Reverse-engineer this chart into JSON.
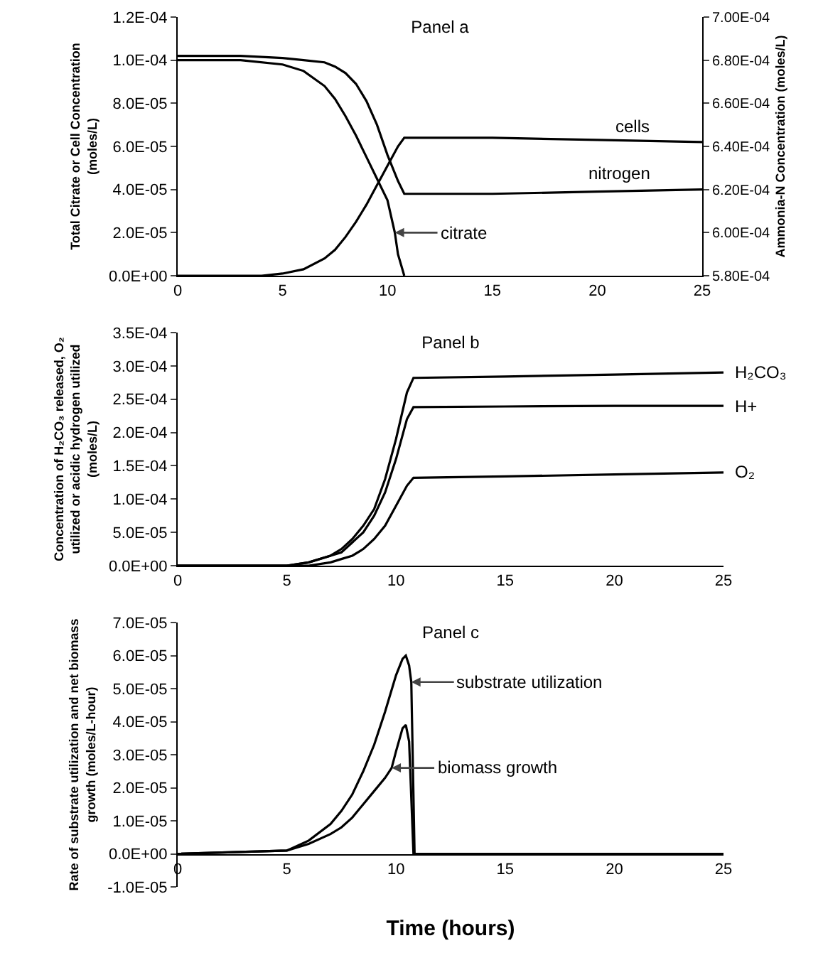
{
  "chart_data": [
    {
      "type": "line",
      "title": "Panel a",
      "ylabel": "Total Citrate or Cell Concentration\n(moles/L)",
      "y2label": "Ammonia-N Concentration (moles/L)",
      "xlim": [
        0,
        25
      ],
      "xticks": [
        0,
        5,
        10,
        15,
        20,
        25
      ],
      "ylim": [
        0,
        0.00012
      ],
      "yticks": [
        {
          "value": 0,
          "label": "0.0E+00"
        },
        {
          "value": 2e-05,
          "label": "2.0E-05"
        },
        {
          "value": 4e-05,
          "label": "4.0E-05"
        },
        {
          "value": 6e-05,
          "label": "6.0E-05"
        },
        {
          "value": 8e-05,
          "label": "8.0E-05"
        },
        {
          "value": 0.0001,
          "label": "1.0E-04"
        },
        {
          "value": 0.00012,
          "label": "1.2E-04"
        }
      ],
      "y2lim": [
        0.00058,
        0.0007
      ],
      "y2ticks": [
        {
          "value": 0.00058,
          "label": "5.80E-04"
        },
        {
          "value": 0.0006,
          "label": "6.00E-04"
        },
        {
          "value": 0.00062,
          "label": "6.20E-04"
        },
        {
          "value": 0.00064,
          "label": "6.40E-04"
        },
        {
          "value": 0.00066,
          "label": "6.60E-04"
        },
        {
          "value": 0.00068,
          "label": "6.80E-04"
        },
        {
          "value": 0.0007,
          "label": "7.00E-04"
        }
      ],
      "grid": false,
      "legend": false,
      "line_style": "solid",
      "marker": "none",
      "series": [
        {
          "color": "#000000",
          "x": [
            0,
            3,
            5,
            6,
            7,
            7.5,
            8,
            8.5,
            9,
            9.5,
            10,
            10.35,
            10.5,
            10.8
          ],
          "values": [
            0.0001,
            0.0001,
            9.8e-05,
            9.5e-05,
            8.8e-05,
            8.2e-05,
            7.4e-05,
            6.5e-05,
            5.5e-05,
            4.5e-05,
            3.5e-05,
            2e-05,
            1e-05,
            0
          ]
        },
        {
          "name": "cells",
          "color": "#000000",
          "x": [
            0,
            4,
            5,
            6,
            7,
            7.5,
            8,
            8.5,
            9,
            9.5,
            10,
            10.5,
            10.8,
            15,
            20,
            25
          ],
          "values": [
            0,
            0,
            1e-06,
            3e-06,
            8e-06,
            1.2e-05,
            1.8e-05,
            2.5e-05,
            3.3e-05,
            4.2e-05,
            5.1e-05,
            6e-05,
            6.4e-05,
            6.4e-05,
            6.3e-05,
            6.2e-05
          ]
        },
        {
          "name": "nitrogen",
          "color": "#000000",
          "axis": "y2",
          "x": [
            0,
            3,
            5,
            6,
            7,
            7.5,
            8,
            8.5,
            9,
            9.5,
            10,
            10.5,
            10.8,
            15,
            20,
            25
          ],
          "values": [
            0.000682,
            0.000682,
            0.000681,
            0.00068,
            0.000679,
            0.000677,
            0.000674,
            0.000669,
            0.000661,
            0.00065,
            0.000636,
            0.000624,
            0.000618,
            0.000618,
            0.000619,
            0.00062
          ]
        }
      ],
      "annotations": [
        {
          "text": "citrate",
          "x": 10.35,
          "y": 2e-05
        }
      ]
    },
    {
      "type": "line",
      "title": "Panel b",
      "ylabel": "Concentration of H₂CO₃ released, O₂\nutilized or acidic hydrogen utilized\n(moles/L)",
      "xlim": [
        0,
        25
      ],
      "xticks": [
        0,
        5,
        10,
        15,
        20,
        25
      ],
      "ylim": [
        0,
        0.00035
      ],
      "yticks": [
        {
          "value": 0,
          "label": "0.0E+00"
        },
        {
          "value": 5e-05,
          "label": "5.0E-05"
        },
        {
          "value": 0.0001,
          "label": "1.0E-04"
        },
        {
          "value": 0.00015,
          "label": "1.5E-04"
        },
        {
          "value": 0.0002,
          "label": "2.0E-04"
        },
        {
          "value": 0.00025,
          "label": "2.5E-04"
        },
        {
          "value": 0.0003,
          "label": "3.0E-04"
        },
        {
          "value": 0.00035,
          "label": "3.5E-04"
        }
      ],
      "grid": false,
      "legend": false,
      "line_style": "solid",
      "marker": "none",
      "series": [
        {
          "name": "H₂CO₃",
          "color": "#000000",
          "x": [
            0,
            5,
            6,
            7,
            7.5,
            8,
            8.5,
            9,
            9.5,
            10,
            10.5,
            10.8,
            15,
            20,
            25
          ],
          "values": [
            0,
            0,
            5e-06,
            1.5e-05,
            2.5e-05,
            4e-05,
            6e-05,
            8.5e-05,
            0.00013,
            0.00019,
            0.00026,
            0.000282,
            0.000284,
            0.000287,
            0.00029
          ]
        },
        {
          "name": "H+",
          "color": "#000000",
          "x": [
            0,
            5,
            6,
            7,
            7.5,
            8,
            8.5,
            9,
            9.5,
            10,
            10.5,
            10.8,
            15,
            20,
            25
          ],
          "values": [
            0,
            0,
            5e-06,
            1.5e-05,
            2e-05,
            3.5e-05,
            5e-05,
            7.5e-05,
            0.00011,
            0.00016,
            0.00022,
            0.000238,
            0.000239,
            0.00024,
            0.00024
          ]
        },
        {
          "name": "O₂",
          "color": "#000000",
          "x": [
            0,
            5,
            6,
            7,
            7.5,
            8,
            8.5,
            9,
            9.5,
            10,
            10.5,
            10.8,
            15,
            20,
            25
          ],
          "values": [
            0,
            0,
            0,
            5e-06,
            1e-05,
            1.5e-05,
            2.5e-05,
            4e-05,
            6e-05,
            9e-05,
            0.00012,
            0.000132,
            0.000134,
            0.000137,
            0.00014
          ]
        }
      ]
    },
    {
      "type": "line",
      "title": "Panel c",
      "xlabel": "Time (hours)",
      "ylabel": "Rate of substrate utilization and net biomass\ngrowth (moles/L-hour)",
      "xlim": [
        0,
        25
      ],
      "xticks": [
        0,
        5,
        10,
        15,
        20,
        25
      ],
      "ylim": [
        -1e-05,
        7e-05
      ],
      "yticks": [
        {
          "value": -1e-05,
          "label": "-1.0E-05"
        },
        {
          "value": 0,
          "label": "0.0E+00"
        },
        {
          "value": 1e-05,
          "label": "1.0E-05"
        },
        {
          "value": 2e-05,
          "label": "2.0E-05"
        },
        {
          "value": 3e-05,
          "label": "3.0E-05"
        },
        {
          "value": 4e-05,
          "label": "4.0E-05"
        },
        {
          "value": 5e-05,
          "label": "5.0E-05"
        },
        {
          "value": 6e-05,
          "label": "6.0E-05"
        },
        {
          "value": 7e-05,
          "label": "7.0E-05"
        }
      ],
      "grid": false,
      "legend": false,
      "line_style": "solid",
      "marker": "none",
      "series": [
        {
          "color": "#000000",
          "x": [
            0,
            5,
            6,
            7,
            7.5,
            8,
            8.5,
            9,
            9.5,
            10,
            10.3,
            10.45,
            10.6,
            10.7,
            10.85,
            25
          ],
          "values": [
            0,
            1e-06,
            4e-06,
            9e-06,
            1.3e-05,
            1.8e-05,
            2.5e-05,
            3.3e-05,
            4.3e-05,
            5.4e-05,
            5.9e-05,
            6e-05,
            5.7e-05,
            5.2e-05,
            0,
            0
          ]
        },
        {
          "color": "#000000",
          "x": [
            0,
            5,
            6,
            7,
            7.5,
            8,
            8.5,
            9,
            9.5,
            9.8,
            10,
            10.3,
            10.45,
            10.6,
            10.8,
            25
          ],
          "values": [
            0,
            1e-06,
            3e-06,
            6e-06,
            8e-06,
            1.1e-05,
            1.5e-05,
            1.9e-05,
            2.3e-05,
            2.6e-05,
            3.1e-05,
            3.8e-05,
            3.9e-05,
            3.4e-05,
            0,
            0
          ]
        }
      ],
      "annotations": [
        {
          "text": "substrate utilization",
          "x": 10.7,
          "y": 5.2e-05
        },
        {
          "text": "biomass growth",
          "x": 9.8,
          "y": 2.6e-05
        }
      ]
    }
  ]
}
